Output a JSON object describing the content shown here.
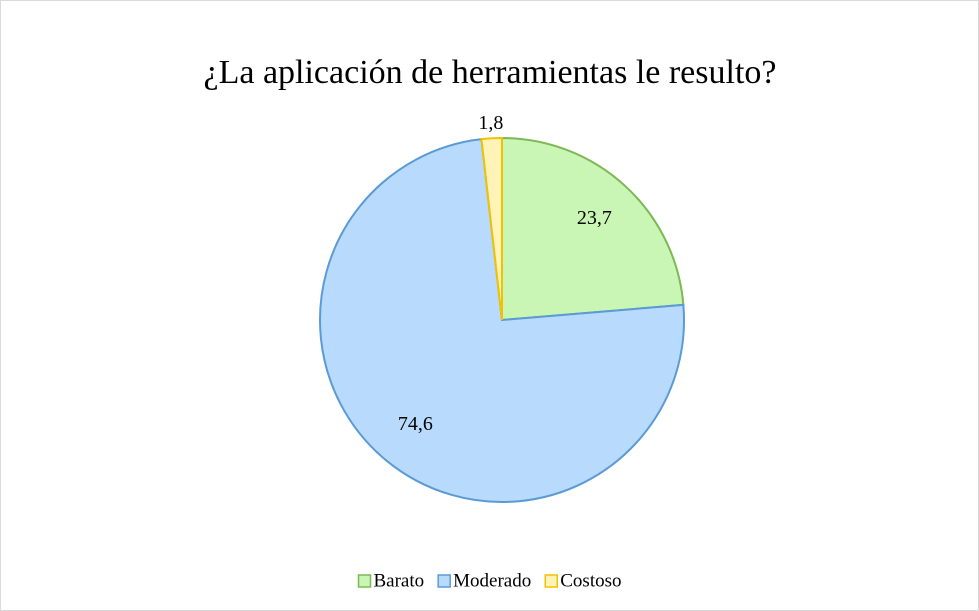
{
  "chart_data": {
    "type": "pie",
    "title": "¿La aplicación de herramientas le resulto?",
    "categories": [
      "Barato",
      "Moderado",
      "Costoso"
    ],
    "values": [
      23.7,
      74.6,
      1.8
    ],
    "value_labels": [
      "23,7",
      "74,6",
      "1,8"
    ],
    "colors": [
      "#c9f5b5",
      "#b8dafc",
      "#fff3b8"
    ],
    "edge_colors": [
      "#7cb854",
      "#5b9bd5",
      "#f2c200"
    ],
    "legend": "bottom"
  }
}
